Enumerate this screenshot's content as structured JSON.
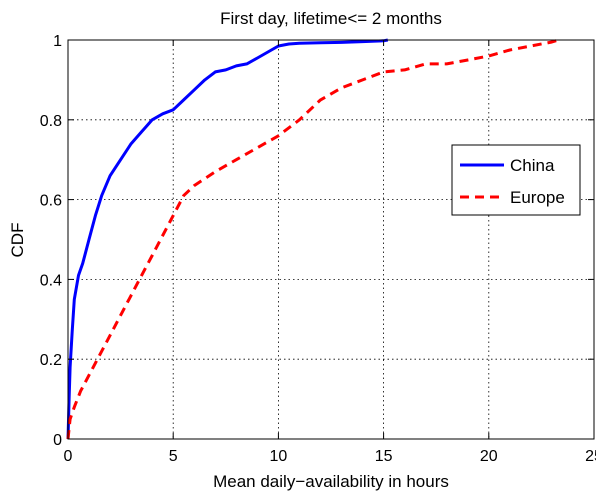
{
  "chart_data": {
    "type": "line",
    "title": "First day, lifetime<= 2 months",
    "xlabel": "Mean daily−availability in hours",
    "ylabel": "CDF",
    "xlim": [
      0,
      25
    ],
    "ylim": [
      0,
      1
    ],
    "xticks": [
      0,
      5,
      10,
      15,
      20,
      25
    ],
    "yticks": [
      0,
      0.2,
      0.4,
      0.6,
      0.8,
      1
    ],
    "grid": true,
    "legend_position": "right",
    "series": [
      {
        "name": "China",
        "color": "#0000ff",
        "style": "solid",
        "x": [
          0,
          0.05,
          0.1,
          0.2,
          0.3,
          0.5,
          0.7,
          1.0,
          1.3,
          1.6,
          2.0,
          2.5,
          3.0,
          3.5,
          4.0,
          4.5,
          5.0,
          5.5,
          6.0,
          6.5,
          7.0,
          7.5,
          8.0,
          8.5,
          9.0,
          9.5,
          10.0,
          10.5,
          11.0,
          12.0,
          13.0,
          14.0,
          15.0,
          15.2
        ],
        "y": [
          0,
          0.1,
          0.18,
          0.27,
          0.35,
          0.41,
          0.44,
          0.5,
          0.56,
          0.61,
          0.66,
          0.7,
          0.74,
          0.77,
          0.8,
          0.815,
          0.825,
          0.85,
          0.875,
          0.9,
          0.92,
          0.925,
          0.935,
          0.94,
          0.955,
          0.97,
          0.985,
          0.99,
          0.992,
          0.993,
          0.994,
          0.996,
          0.998,
          1.0
        ]
      },
      {
        "name": "Europe",
        "color": "#ff0000",
        "style": "dashed",
        "x": [
          0,
          0.1,
          0.3,
          0.6,
          1.0,
          1.5,
          2.0,
          2.5,
          3.0,
          3.5,
          4.0,
          4.5,
          5.0,
          5.5,
          6.0,
          7.0,
          8.0,
          9.0,
          10.0,
          11.0,
          12.0,
          13.0,
          14.0,
          15.0,
          16.0,
          17.0,
          18.0,
          19.0,
          20.0,
          21.0,
          22.0,
          23.0,
          23.3
        ],
        "y": [
          0,
          0.05,
          0.08,
          0.12,
          0.16,
          0.21,
          0.26,
          0.31,
          0.36,
          0.41,
          0.46,
          0.51,
          0.56,
          0.61,
          0.635,
          0.67,
          0.7,
          0.73,
          0.76,
          0.8,
          0.85,
          0.88,
          0.9,
          0.92,
          0.925,
          0.94,
          0.94,
          0.95,
          0.96,
          0.975,
          0.985,
          0.995,
          1.0
        ]
      }
    ]
  }
}
